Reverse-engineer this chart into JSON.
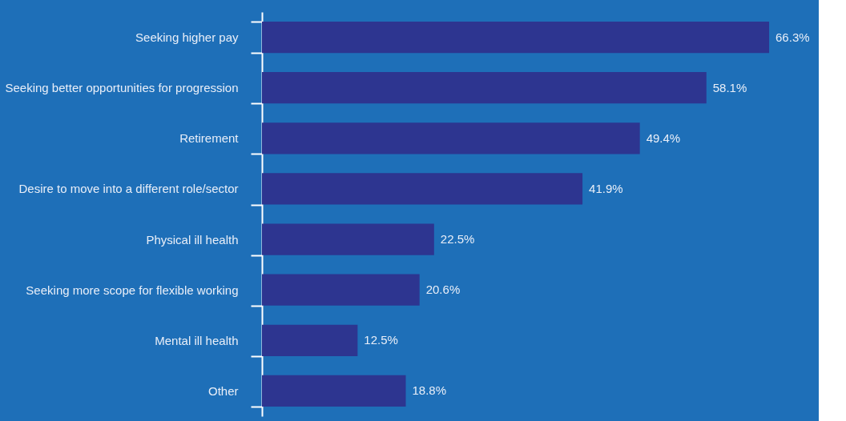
{
  "chart_data": {
    "type": "bar",
    "orientation": "horizontal",
    "categories": [
      "Seeking higher pay",
      "Seeking better opportunities for progression",
      "Retirement",
      "Desire to move into a different role/sector",
      "Physical ill health",
      "Seeking more scope for flexible working",
      "Mental ill health",
      "Other"
    ],
    "values": [
      66.3,
      58.1,
      49.4,
      41.9,
      22.5,
      20.6,
      12.5,
      18.8
    ],
    "value_labels": [
      "66.3%",
      "58.1%",
      "49.4%",
      "41.9%",
      "22.5%",
      "20.6%",
      "12.5%",
      "18.8%"
    ],
    "color": "#2d3590",
    "tick_labels": "y"
  }
}
